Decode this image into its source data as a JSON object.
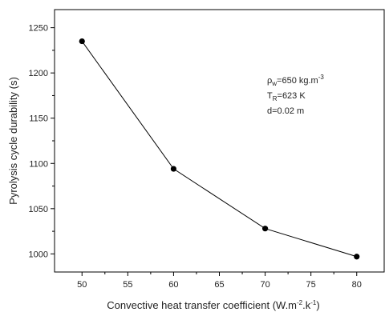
{
  "chart_data": {
    "type": "line",
    "title": "",
    "xlabel": "Convective heat transfer coefficient (W.m",
    "xlabel_exp1": "-2",
    "xlabel_mid": ".k",
    "xlabel_exp2": "-1",
    "xlabel_end": ")",
    "ylabel": "Pyrolysis cycle durability (s)",
    "xlim": [
      47,
      83
    ],
    "ylim": [
      980,
      1270
    ],
    "xticks": [
      50,
      55,
      60,
      65,
      70,
      75,
      80
    ],
    "yticks": [
      1000,
      1050,
      1100,
      1150,
      1200,
      1250
    ],
    "grid": false,
    "series": [
      {
        "x": [
          50,
          60,
          70,
          80
        ],
        "y": [
          1235,
          1094,
          1028,
          997
        ],
        "color": "#000000",
        "marker": "circle"
      }
    ],
    "annotation": {
      "line1_sym": "ρ",
      "line1_sub": "w",
      "line1_text": "=650 kg.m",
      "line1_sup": "-3",
      "line2_sym": "T",
      "line2_sub": "R",
      "line2_text": "=623 K",
      "line3_text": "d=0.02 m"
    }
  }
}
